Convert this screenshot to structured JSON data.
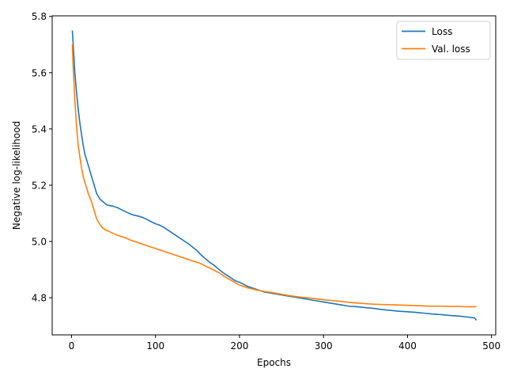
{
  "chart_data": {
    "type": "line",
    "title": "",
    "xlabel": "Epochs",
    "ylabel": "Negative log-likelihood",
    "xlim": [
      -23,
      505
    ],
    "ylim": [
      4.668,
      5.802
    ],
    "xticks": [
      0,
      100,
      200,
      300,
      400,
      500
    ],
    "yticks": [
      4.8,
      5.0,
      5.2,
      5.4,
      5.6,
      5.8
    ],
    "xtick_labels": [
      "0",
      "100",
      "200",
      "300",
      "400",
      "500"
    ],
    "ytick_labels": [
      "4.8",
      "5.0",
      "5.2",
      "5.4",
      "5.6",
      "5.8"
    ],
    "grid": false,
    "legend_position": "top-right",
    "series": [
      {
        "name": "Loss",
        "color": "#1f77b4",
        "x": [
          1,
          2,
          4,
          6,
          8,
          10,
          12,
          14,
          16,
          18,
          20,
          22,
          24,
          26,
          28,
          30,
          32,
          34,
          36,
          38,
          40,
          42,
          45,
          50,
          55,
          60,
          65,
          70,
          75,
          80,
          85,
          90,
          95,
          100,
          105,
          110,
          115,
          120,
          125,
          130,
          135,
          140,
          145,
          150,
          155,
          160,
          165,
          170,
          175,
          180,
          185,
          190,
          195,
          200,
          210,
          220,
          230,
          240,
          250,
          260,
          270,
          280,
          290,
          300,
          310,
          320,
          330,
          340,
          350,
          360,
          370,
          380,
          390,
          400,
          410,
          420,
          430,
          440,
          450,
          460,
          470,
          480,
          482
        ],
        "y": [
          5.75,
          5.7,
          5.6,
          5.53,
          5.47,
          5.42,
          5.38,
          5.34,
          5.31,
          5.29,
          5.27,
          5.25,
          5.23,
          5.21,
          5.19,
          5.17,
          5.16,
          5.15,
          5.145,
          5.14,
          5.135,
          5.13,
          5.128,
          5.125,
          5.12,
          5.112,
          5.105,
          5.098,
          5.093,
          5.09,
          5.085,
          5.078,
          5.07,
          5.063,
          5.058,
          5.05,
          5.04,
          5.03,
          5.02,
          5.01,
          5.0,
          4.99,
          4.978,
          4.966,
          4.95,
          4.937,
          4.925,
          4.915,
          4.902,
          4.89,
          4.88,
          4.87,
          4.86,
          4.855,
          4.84,
          4.83,
          4.82,
          4.815,
          4.81,
          4.805,
          4.8,
          4.795,
          4.79,
          4.785,
          4.78,
          4.775,
          4.77,
          4.768,
          4.765,
          4.762,
          4.758,
          4.755,
          4.752,
          4.75,
          4.748,
          4.745,
          4.742,
          4.74,
          4.737,
          4.735,
          4.732,
          4.728,
          4.72
        ]
      },
      {
        "name": "Val. loss",
        "color": "#ff7f0e",
        "x": [
          1,
          2,
          4,
          6,
          8,
          10,
          12,
          14,
          16,
          18,
          20,
          22,
          24,
          26,
          28,
          30,
          32,
          34,
          36,
          38,
          40,
          45,
          50,
          55,
          60,
          65,
          70,
          75,
          80,
          85,
          90,
          95,
          100,
          105,
          110,
          115,
          120,
          125,
          130,
          135,
          140,
          145,
          150,
          155,
          160,
          165,
          170,
          175,
          180,
          185,
          190,
          195,
          200,
          210,
          220,
          230,
          240,
          250,
          260,
          270,
          280,
          290,
          300,
          310,
          320,
          330,
          340,
          350,
          360,
          370,
          380,
          390,
          400,
          410,
          420,
          430,
          440,
          450,
          460,
          470,
          480,
          482
        ],
        "y": [
          5.7,
          5.62,
          5.5,
          5.41,
          5.34,
          5.3,
          5.26,
          5.23,
          5.21,
          5.19,
          5.17,
          5.155,
          5.14,
          5.12,
          5.1,
          5.08,
          5.07,
          5.06,
          5.052,
          5.046,
          5.042,
          5.035,
          5.028,
          5.022,
          5.017,
          5.012,
          5.005,
          5.0,
          4.995,
          4.99,
          4.985,
          4.98,
          4.975,
          4.97,
          4.965,
          4.96,
          4.955,
          4.95,
          4.945,
          4.94,
          4.935,
          4.93,
          4.926,
          4.92,
          4.912,
          4.905,
          4.897,
          4.89,
          4.88,
          4.87,
          4.862,
          4.853,
          4.845,
          4.835,
          4.828,
          4.822,
          4.818,
          4.812,
          4.807,
          4.803,
          4.8,
          4.797,
          4.793,
          4.79,
          4.787,
          4.784,
          4.781,
          4.779,
          4.777,
          4.776,
          4.775,
          4.774,
          4.773,
          4.772,
          4.771,
          4.77,
          4.77,
          4.769,
          4.769,
          4.768,
          4.768,
          4.77
        ]
      }
    ]
  }
}
